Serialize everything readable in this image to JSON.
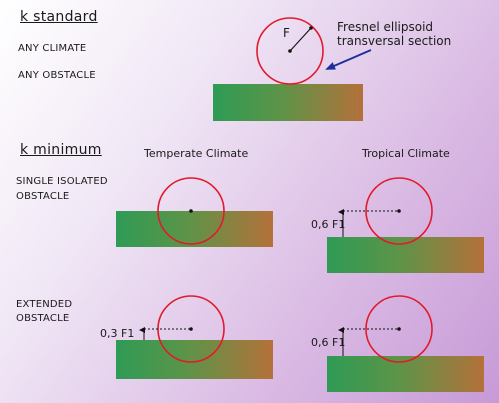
{
  "standard": {
    "heading": "k  standard",
    "label_1": "ANY   CLIMATE",
    "label_2": "ANY  OBSTACLE",
    "radius_label": "F",
    "callout_line_1": "Fresnel ellipsoid",
    "callout_line_2": "transversal section"
  },
  "minimum": {
    "heading": "k  minimum",
    "col_temperate": "Temperate Climate",
    "col_tropical": "Tropical Climate",
    "row_single_1": "SINGLE ISOLATED",
    "row_single_2": "OBSTACLE",
    "row_extended_1": "EXTENDED",
    "row_extended_2": "OBSTACLE"
  },
  "clearances": {
    "tropical_single": "0,6 F1",
    "temperate_extended": "0,3 F1",
    "tropical_extended": "0,6 F1"
  },
  "colors": {
    "circle": "#e21a2c",
    "arrow": "#1f2e9c",
    "ground_left": "#2e9b55",
    "ground_right": "#b4713a"
  }
}
